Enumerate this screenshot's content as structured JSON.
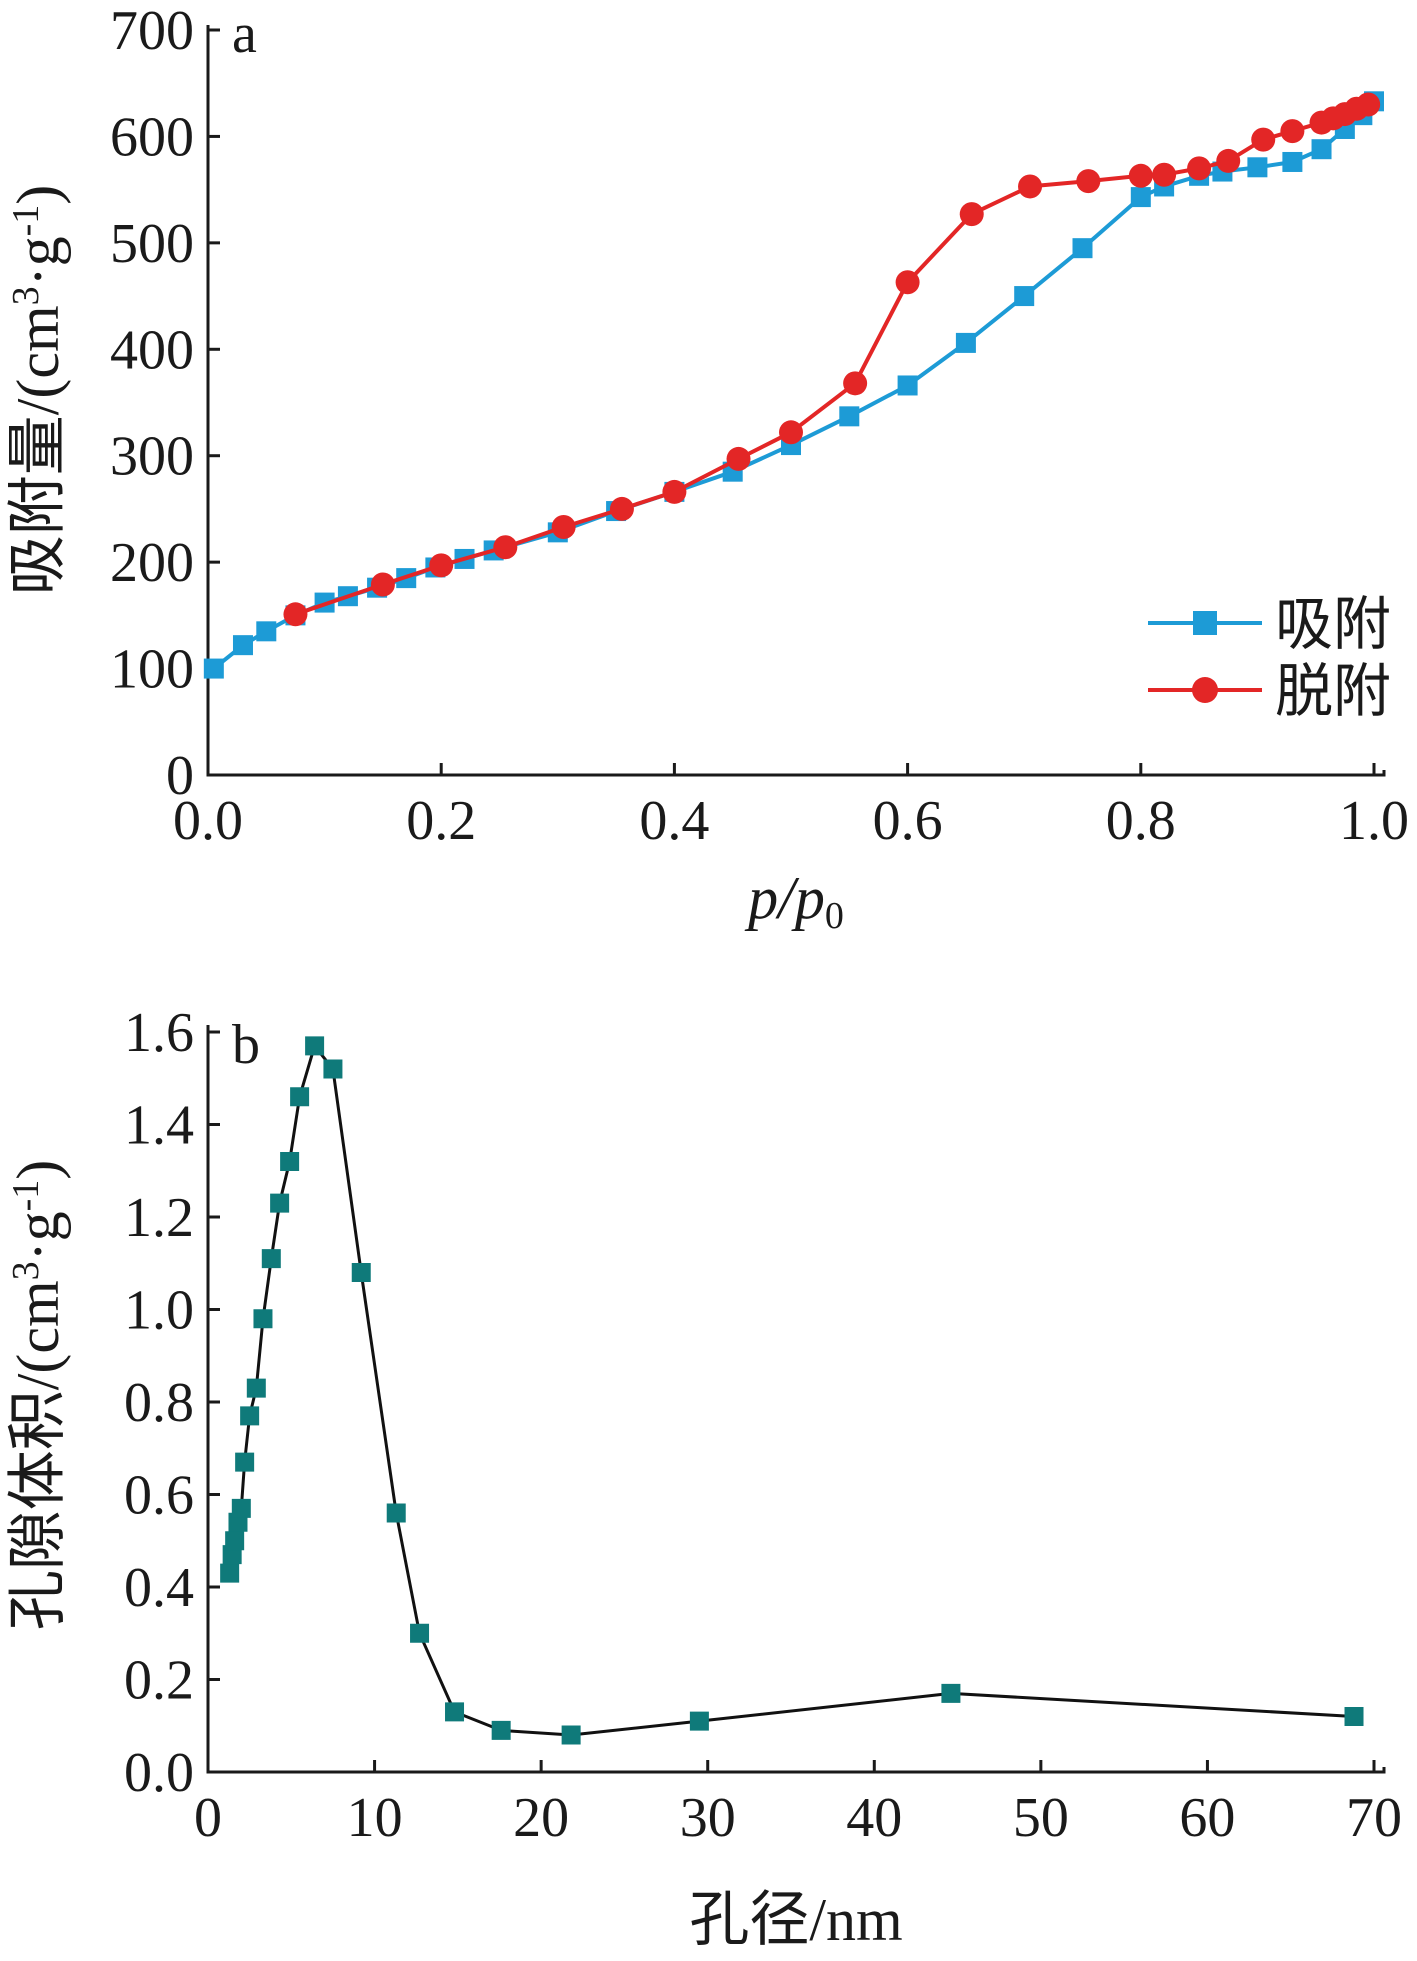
{
  "chart_data": [
    {
      "panel": "a",
      "type": "line",
      "xlabel_main": "p",
      "xlabel_sep": "/p",
      "xlabel_sub": "0",
      "ylabel_main": "吸附量/(cm",
      "ylabel_sup1": "3",
      "ylabel_mid": "·g",
      "ylabel_sup2": "-1",
      "ylabel_end": ")",
      "xlim": [
        0,
        1.0
      ],
      "ylim": [
        0,
        700
      ],
      "xticks": [
        "0.0",
        "0.2",
        "0.4",
        "0.6",
        "0.8",
        "1.0"
      ],
      "yticks": [
        "0",
        "100",
        "200",
        "300",
        "400",
        "500",
        "600",
        "700"
      ],
      "legend_position": "lower-right",
      "series": [
        {
          "name": "吸附",
          "color": "#1d9bd6",
          "marker": "square",
          "x": [
            0.005,
            0.03,
            0.05,
            0.075,
            0.1,
            0.12,
            0.145,
            0.17,
            0.195,
            0.22,
            0.245,
            0.3,
            0.35,
            0.4,
            0.45,
            0.5,
            0.55,
            0.6,
            0.65,
            0.7,
            0.75,
            0.8,
            0.82,
            0.85,
            0.87,
            0.9,
            0.93,
            0.955,
            0.975,
            0.99,
            1.0
          ],
          "y": [
            100,
            122,
            135,
            150,
            162,
            168,
            176,
            185,
            195,
            203,
            211,
            228,
            248,
            266,
            285,
            310,
            337,
            366,
            406,
            450,
            495,
            543,
            553,
            563,
            567,
            571,
            576,
            588,
            607,
            620,
            633
          ]
        },
        {
          "name": "脱附",
          "color": "#e32626",
          "marker": "circle",
          "x": [
            0.075,
            0.15,
            0.2,
            0.255,
            0.305,
            0.355,
            0.4,
            0.455,
            0.5,
            0.555,
            0.6,
            0.655,
            0.705,
            0.755,
            0.8,
            0.82,
            0.85,
            0.875,
            0.905,
            0.93,
            0.955,
            0.965,
            0.975,
            0.985,
            0.995
          ],
          "y": [
            151,
            179,
            197,
            214,
            233,
            250,
            266,
            297,
            322,
            368,
            463,
            527,
            553,
            558,
            563,
            564,
            570,
            577,
            597,
            605,
            613,
            617,
            621,
            626,
            630
          ]
        }
      ]
    },
    {
      "panel": "b",
      "type": "line",
      "xlabel": "孔径/nm",
      "ylabel_main": "孔隙体积/(cm",
      "ylabel_sup1": "3",
      "ylabel_mid": "·g",
      "ylabel_sup2": "-1",
      "ylabel_end": ")",
      "xlim": [
        0,
        70
      ],
      "ylim": [
        0,
        1.6
      ],
      "xticks": [
        "0",
        "10",
        "20",
        "30",
        "40",
        "50",
        "60",
        "70"
      ],
      "yticks": [
        "0.0",
        "0.2",
        "0.4",
        "0.6",
        "0.8",
        "1.0",
        "1.2",
        "1.4",
        "1.6"
      ],
      "series": [
        {
          "color": "#0f7a7a",
          "line_color": "#111111",
          "marker": "square",
          "x": [
            1.3,
            1.45,
            1.6,
            1.8,
            2.0,
            2.2,
            2.5,
            2.9,
            3.3,
            3.8,
            4.3,
            4.9,
            5.5,
            6.4,
            7.5,
            9.2,
            11.3,
            12.7,
            14.8,
            17.6,
            21.8,
            29.5,
            44.6,
            68.8
          ],
          "y": [
            0.43,
            0.47,
            0.5,
            0.54,
            0.57,
            0.67,
            0.77,
            0.83,
            0.98,
            1.11,
            1.23,
            1.32,
            1.46,
            1.57,
            1.52,
            1.08,
            0.56,
            0.3,
            0.13,
            0.09,
            0.08,
            0.11,
            0.17,
            0.12
          ]
        }
      ]
    }
  ]
}
